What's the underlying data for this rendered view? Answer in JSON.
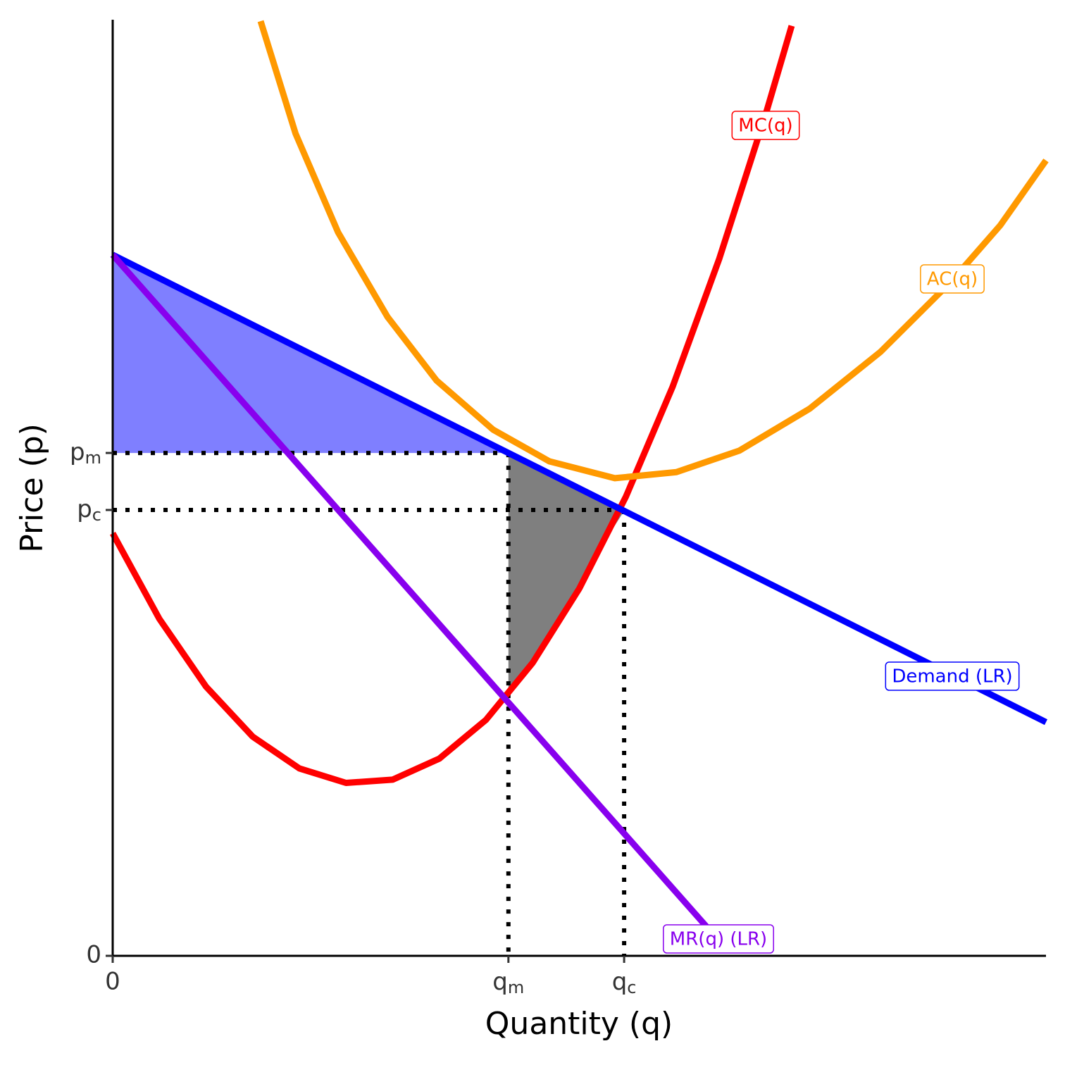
{
  "chart_data": {
    "type": "line",
    "x_label": "Quantity (q)",
    "y_label": "Price (p)",
    "xlim": [
      0,
      20
    ],
    "ylim": [
      0,
      20
    ],
    "xticks": [
      0,
      {
        "value": 8.48,
        "label": "qm"
      },
      {
        "value": 10.96,
        "label": "qc"
      }
    ],
    "yticks": [
      0,
      {
        "value": 9.54,
        "label": "pc"
      },
      {
        "value": 10.76,
        "label": "pm"
      }
    ],
    "areas": [
      {
        "color": "#0000ff",
        "opacity": 0.5,
        "x": [
          0,
          8.48,
          0
        ],
        "values": [
          15,
          10.76,
          10.76
        ]
      },
      {
        "color": "#000000",
        "opacity": 0.5,
        "x": [
          8.48,
          10.96,
          10.5,
          10,
          9.5,
          9,
          8.48
        ],
        "values": [
          10.76,
          9.52,
          8.8,
          7.86,
          7.02,
          6.27,
          5.59
        ]
      }
    ],
    "series": [
      {
        "name": "MC(q)",
        "color": "#ff0000",
        "x": [
          0,
          1,
          2,
          3,
          4,
          5,
          6,
          7,
          8,
          9,
          10,
          11,
          12,
          13,
          14,
          14.55
        ],
        "values": [
          9.04,
          7.21,
          5.76,
          4.69,
          4.01,
          3.7,
          3.77,
          4.22,
          5.05,
          6.27,
          7.86,
          9.83,
          12.18,
          14.92,
          18.03,
          19.9
        ]
      },
      {
        "name": "AC(q)",
        "color": "#ff9900",
        "x": [
          3.17,
          3.92,
          4.83,
          5.89,
          6.94,
          8.15,
          9.36,
          10.76,
          12.08,
          13.43,
          14.94,
          16.45,
          17.96,
          19.02,
          20
        ],
        "values": [
          20,
          17.59,
          15.48,
          13.67,
          12.31,
          11.26,
          10.58,
          10.22,
          10.35,
          10.81,
          11.71,
          12.92,
          14.42,
          15.63,
          17.02
        ]
      },
      {
        "name": "Demand (LR)",
        "color": "#0000ff",
        "x": [
          0,
          20
        ],
        "values": [
          15,
          5
        ]
      },
      {
        "name": "MR(q) (LR)",
        "color": "#8800ee",
        "x": [
          0,
          12.72
        ],
        "values": [
          15,
          0.63
        ]
      }
    ]
  }
}
